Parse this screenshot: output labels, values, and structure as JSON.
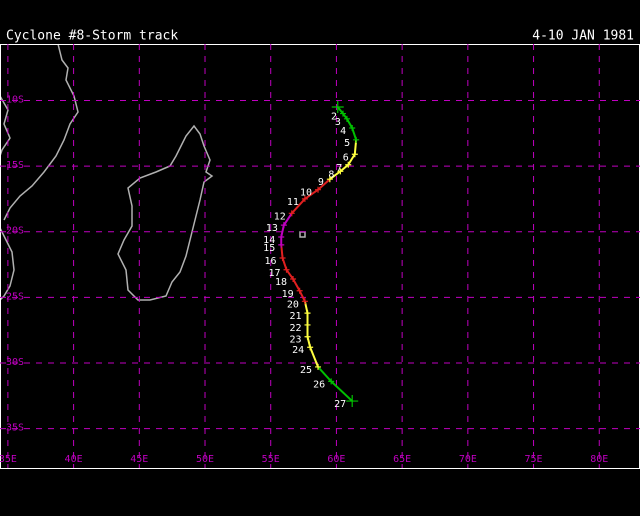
{
  "chart_data": {
    "type": "track",
    "title": "Cyclone #8-Storm track",
    "subtitle": "4-10 JAN 1981",
    "xlim": [
      34.4,
      83.1
    ],
    "ylim": [
      -38.0,
      -5.7
    ],
    "xticks": [
      {
        "value": 35,
        "label": "35E"
      },
      {
        "value": 40,
        "label": "40E"
      },
      {
        "value": 45,
        "label": "45E"
      },
      {
        "value": 50,
        "label": "50E"
      },
      {
        "value": 55,
        "label": "55E"
      },
      {
        "value": 60,
        "label": "60E"
      },
      {
        "value": 65,
        "label": "65E"
      },
      {
        "value": 70,
        "label": "70E"
      },
      {
        "value": 75,
        "label": "75E"
      },
      {
        "value": 80,
        "label": "80E"
      }
    ],
    "yticks": [
      {
        "value": -10,
        "label": "10S"
      },
      {
        "value": -15,
        "label": "15S"
      },
      {
        "value": -20,
        "label": "20S"
      },
      {
        "value": -25,
        "label": "25S"
      },
      {
        "value": -30,
        "label": "30S"
      },
      {
        "value": -35,
        "label": "35S"
      }
    ],
    "grid": true,
    "grid_color": "#c000c0",
    "series": [
      {
        "x": [
          60.1,
          60.5,
          60.8,
          61.2,
          61.5,
          61.4,
          60.9,
          60.3,
          59.5,
          58.6,
          57.6,
          56.6,
          56.0,
          55.8,
          55.8,
          55.9,
          56.2,
          56.7,
          57.2,
          57.6,
          57.8,
          57.8,
          57.8,
          58.0,
          58.6,
          59.6,
          61.2
        ],
        "y": [
          -10.5,
          -11.0,
          -11.4,
          -12.1,
          -13.0,
          -14.1,
          -14.9,
          -15.4,
          -16.0,
          -16.8,
          -17.5,
          -18.6,
          -19.5,
          -20.4,
          -21.0,
          -22.0,
          -22.9,
          -23.6,
          -24.5,
          -25.3,
          -26.2,
          -27.1,
          -28.0,
          -28.8,
          -30.3,
          -31.4,
          -32.9
        ],
        "labels": [
          null,
          2,
          3,
          4,
          5,
          6,
          7,
          8,
          9,
          10,
          11,
          12,
          13,
          14,
          15,
          16,
          17,
          18,
          19,
          20,
          21,
          22,
          23,
          24,
          25,
          26,
          27
        ],
        "colors": [
          "#00c000",
          "#00c000",
          "#00c000",
          "#00c000",
          "#00c000",
          "#ffff40",
          "#ffff40",
          "#ffff40",
          "#ffff40",
          "#e02020",
          "#e02020",
          "#e02020",
          "#c000c0",
          "#c000c0",
          "#c000c0",
          "#e02020",
          "#e02020",
          "#e02020",
          "#e02020",
          "#e02020",
          "#ffff40",
          "#ffff40",
          "#ffff40",
          "#ffff40",
          "#ffff40",
          "#00c000",
          "#00c000"
        ]
      }
    ]
  }
}
